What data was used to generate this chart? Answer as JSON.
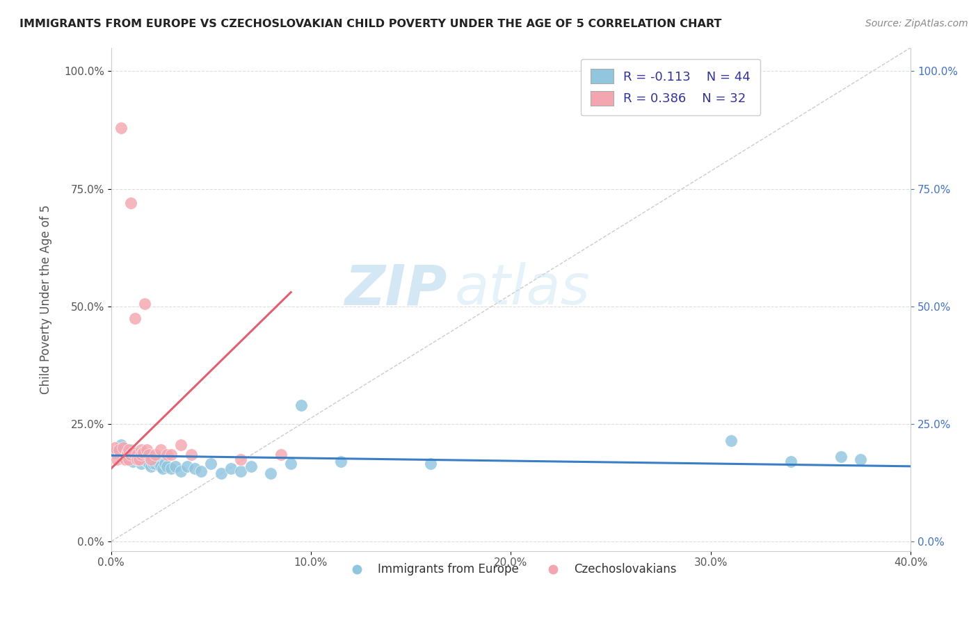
{
  "title": "IMMIGRANTS FROM EUROPE VS CZECHOSLOVAKIAN CHILD POVERTY UNDER THE AGE OF 5 CORRELATION CHART",
  "source": "Source: ZipAtlas.com",
  "ylabel": "Child Poverty Under the Age of 5",
  "xlim": [
    0.0,
    0.4
  ],
  "ylim": [
    -0.02,
    1.05
  ],
  "yticks": [
    0.0,
    0.25,
    0.5,
    0.75,
    1.0
  ],
  "ytick_labels": [
    "0.0%",
    "25.0%",
    "50.0%",
    "75.0%",
    "100.0%"
  ],
  "xticks": [
    0.0,
    0.1,
    0.2,
    0.3,
    0.4
  ],
  "xtick_labels": [
    "0.0%",
    "10.0%",
    "20.0%",
    "30.0%",
    "40.0%"
  ],
  "legend_label1": "Immigrants from Europe",
  "legend_label2": "Czechoslovakians",
  "blue_color": "#92C5DE",
  "pink_color": "#F4A6B0",
  "blue_line_color": "#3A7EC6",
  "pink_line_color": "#E06070",
  "diagonal_color": "#CCCCCC",
  "blue_points_x": [
    0.002,
    0.005,
    0.008,
    0.009,
    0.01,
    0.011,
    0.012,
    0.013,
    0.014,
    0.015,
    0.015,
    0.016,
    0.016,
    0.017,
    0.018,
    0.018,
    0.019,
    0.02,
    0.021,
    0.021,
    0.022,
    0.023,
    0.025,
    0.026,
    0.027,
    0.028,
    0.03,
    0.032,
    0.035,
    0.038,
    0.042,
    0.045,
    0.05,
    0.055,
    0.06,
    0.065,
    0.07,
    0.08,
    0.09,
    0.095,
    0.115,
    0.16,
    0.31,
    0.34,
    0.365,
    0.375
  ],
  "blue_points_y": [
    0.19,
    0.205,
    0.18,
    0.175,
    0.195,
    0.17,
    0.18,
    0.175,
    0.175,
    0.185,
    0.165,
    0.175,
    0.185,
    0.175,
    0.17,
    0.185,
    0.165,
    0.16,
    0.165,
    0.175,
    0.165,
    0.17,
    0.16,
    0.155,
    0.165,
    0.16,
    0.155,
    0.16,
    0.15,
    0.16,
    0.155,
    0.15,
    0.165,
    0.145,
    0.155,
    0.15,
    0.16,
    0.145,
    0.165,
    0.29,
    0.17,
    0.165,
    0.215,
    0.17,
    0.18,
    0.175
  ],
  "pink_points_x": [
    0.002,
    0.003,
    0.004,
    0.005,
    0.006,
    0.007,
    0.008,
    0.008,
    0.009,
    0.009,
    0.01,
    0.01,
    0.011,
    0.012,
    0.013,
    0.013,
    0.014,
    0.015,
    0.015,
    0.016,
    0.017,
    0.018,
    0.019,
    0.02,
    0.022,
    0.025,
    0.028,
    0.03,
    0.035,
    0.04,
    0.065,
    0.085
  ],
  "pink_points_y": [
    0.2,
    0.175,
    0.195,
    0.88,
    0.2,
    0.175,
    0.19,
    0.185,
    0.195,
    0.175,
    0.72,
    0.185,
    0.19,
    0.475,
    0.185,
    0.175,
    0.175,
    0.195,
    0.185,
    0.19,
    0.505,
    0.195,
    0.185,
    0.175,
    0.185,
    0.195,
    0.185,
    0.185,
    0.205,
    0.185,
    0.175,
    0.185
  ],
  "blue_trend_x": [
    0.0,
    0.4
  ],
  "blue_trend_y": [
    0.183,
    0.16
  ],
  "pink_trend_x": [
    0.0,
    0.09
  ],
  "pink_trend_y": [
    0.155,
    0.53
  ],
  "background_color": "#FFFFFF",
  "grid_color": "#DDDDDD",
  "title_color": "#222222",
  "source_color": "#888888",
  "axis_label_color": "#555555",
  "tick_color": "#555555",
  "right_tick_color": "#4472C4",
  "watermark_zip": "ZIP",
  "watermark_atlas": "atlas"
}
